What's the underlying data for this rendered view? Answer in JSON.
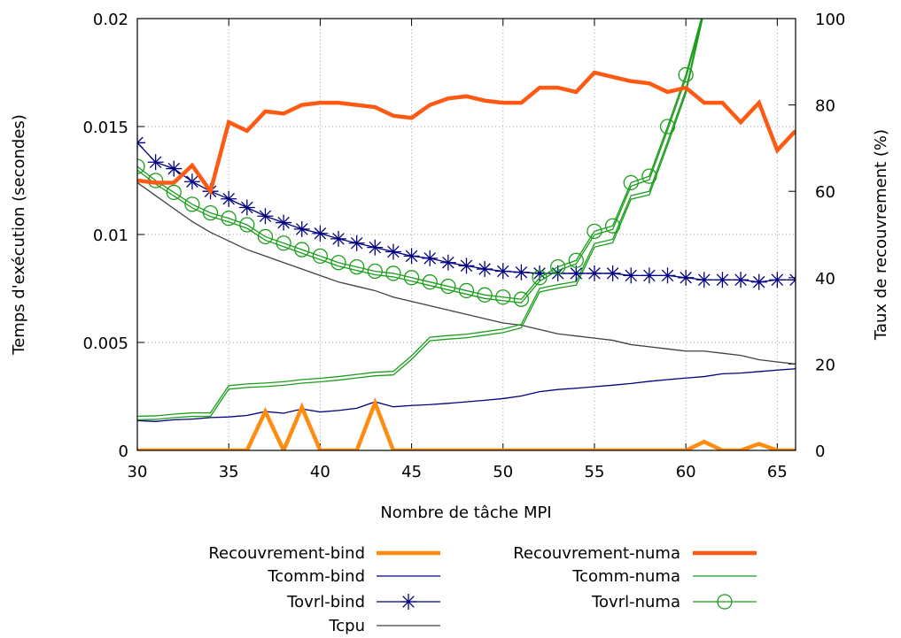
{
  "chart_data": {
    "type": "line",
    "title": "",
    "xlabel": "Nombre de tâche MPI",
    "ylabel": "Temps d'exécution (secondes)",
    "y2label": "Taux de recouvrement (%)",
    "xlim": [
      30,
      66
    ],
    "ylim": [
      0,
      0.02
    ],
    "y2lim": [
      0,
      100
    ],
    "xticks": [
      "30",
      "35",
      "40",
      "45",
      "50",
      "55",
      "60",
      "65"
    ],
    "yticks": [
      "0",
      "0.005",
      "0.01",
      "0.015",
      "0.02"
    ],
    "y2ticks": [
      "0",
      "20",
      "40",
      "60",
      "80",
      "100"
    ],
    "grid": true,
    "legend_position": "bottom",
    "x": [
      30,
      31,
      32,
      33,
      34,
      35,
      36,
      37,
      38,
      39,
      40,
      41,
      42,
      43,
      44,
      45,
      46,
      47,
      48,
      49,
      50,
      51,
      52,
      53,
      54,
      55,
      56,
      57,
      58,
      59,
      60,
      61,
      62,
      63,
      64,
      65,
      66
    ],
    "series": [
      {
        "name": "Recouvrement-bind",
        "axis": "y2",
        "style": "line",
        "color": "#ff8c0f",
        "width": 4.5,
        "values": [
          0,
          0,
          0,
          0,
          0,
          0,
          0,
          9,
          0,
          10,
          0,
          0,
          0,
          11,
          0,
          0,
          0,
          0,
          0,
          0,
          0,
          0,
          0,
          0,
          0,
          0,
          0,
          0,
          0,
          0,
          0,
          2,
          0,
          0,
          1.5,
          0,
          0
        ]
      },
      {
        "name": "Recouvrement-numa",
        "axis": "y2",
        "style": "line",
        "color": "#ff5a14",
        "width": 4.5,
        "values": [
          62.5,
          62,
          62,
          66,
          60,
          76,
          74,
          78.5,
          78,
          80,
          80.5,
          80.5,
          80,
          79.5,
          77.5,
          77,
          80,
          81.5,
          82,
          81,
          80.5,
          80.5,
          84,
          84,
          83,
          87.5,
          86.5,
          85.5,
          85,
          83,
          84,
          80.5,
          80.5,
          76,
          80.5,
          69.5,
          74
        ]
      },
      {
        "name": "Tcomm-bind",
        "axis": "y",
        "style": "line",
        "color": "#000080",
        "width": 1.3,
        "values": [
          0.00138,
          0.00134,
          0.00142,
          0.00145,
          0.00152,
          0.00155,
          0.00162,
          0.0018,
          0.00172,
          0.00192,
          0.00178,
          0.00185,
          0.00195,
          0.00225,
          0.00202,
          0.00208,
          0.00212,
          0.00218,
          0.00225,
          0.00232,
          0.0024,
          0.00252,
          0.00272,
          0.00282,
          0.00288,
          0.00295,
          0.00302,
          0.0031,
          0.0032,
          0.00328,
          0.00335,
          0.00342,
          0.00355,
          0.00358,
          0.00365,
          0.00372,
          0.00378
        ]
      },
      {
        "name": "Tcomm-numa",
        "axis": "y",
        "style": "line",
        "color": "#1a9e1a",
        "width": 1.3,
        "values": [
          0.00158,
          0.0016,
          0.00168,
          0.00174,
          0.00174,
          0.003,
          0.00308,
          0.00312,
          0.00318,
          0.00328,
          0.00334,
          0.00342,
          0.00352,
          0.00362,
          0.00366,
          0.00438,
          0.00524,
          0.00532,
          0.00538,
          0.0055,
          0.00562,
          0.00584,
          0.0075,
          0.00768,
          0.00782,
          0.00958,
          0.00978,
          0.0118,
          0.012,
          0.0143,
          0.0167,
          0.0205,
          0.0215,
          0.0215,
          0.0215,
          0.0215,
          0.0215
        ]
      },
      {
        "name": "Tovrl-bind",
        "axis": "y",
        "style": "line-star",
        "color": "#000080",
        "width": 1.3,
        "values": [
          0.01425,
          0.01335,
          0.01305,
          0.01245,
          0.012,
          0.01165,
          0.01125,
          0.01085,
          0.01055,
          0.01025,
          0.01005,
          0.0098,
          0.0096,
          0.0094,
          0.0092,
          0.009,
          0.0089,
          0.0087,
          0.00855,
          0.0084,
          0.0083,
          0.00825,
          0.0082,
          0.0082,
          0.0082,
          0.0082,
          0.0082,
          0.0081,
          0.0081,
          0.0081,
          0.008,
          0.0079,
          0.0079,
          0.0079,
          0.0078,
          0.0079,
          0.0079
        ]
      },
      {
        "name": "Tovrl-numa",
        "axis": "y",
        "style": "line-circle",
        "color": "#1a9e1a",
        "width": 1.3,
        "values": [
          0.01315,
          0.0125,
          0.01195,
          0.0114,
          0.011,
          0.01075,
          0.01045,
          0.0099,
          0.0096,
          0.0093,
          0.009,
          0.0087,
          0.0085,
          0.0083,
          0.0082,
          0.008,
          0.0078,
          0.0076,
          0.0074,
          0.0072,
          0.0071,
          0.007,
          0.008,
          0.0085,
          0.0088,
          0.01015,
          0.0104,
          0.0124,
          0.0127,
          0.015,
          0.0174,
          0.0205,
          0.0215,
          0.0215,
          0.0215,
          0.0215,
          0.0215
        ]
      },
      {
        "name": "Tcpu",
        "axis": "y",
        "style": "line",
        "color": "#404040",
        "width": 1.3,
        "values": [
          0.0124,
          0.0118,
          0.0112,
          0.0106,
          0.0101,
          0.0097,
          0.0093,
          0.009,
          0.0087,
          0.0084,
          0.0081,
          0.0078,
          0.0076,
          0.0074,
          0.0071,
          0.0069,
          0.0067,
          0.0065,
          0.0063,
          0.0061,
          0.0059,
          0.0058,
          0.0056,
          0.0054,
          0.0053,
          0.0052,
          0.0051,
          0.0049,
          0.0048,
          0.0047,
          0.0046,
          0.0046,
          0.0045,
          0.0044,
          0.0042,
          0.0041,
          0.004
        ]
      }
    ],
    "legend": {
      "left": [
        "Recouvrement-bind",
        "Tcomm-bind",
        "Tovrl-bind",
        "Tcpu"
      ],
      "right": [
        "Recouvrement-numa",
        "Tcomm-numa",
        "Tovrl-numa"
      ]
    }
  }
}
